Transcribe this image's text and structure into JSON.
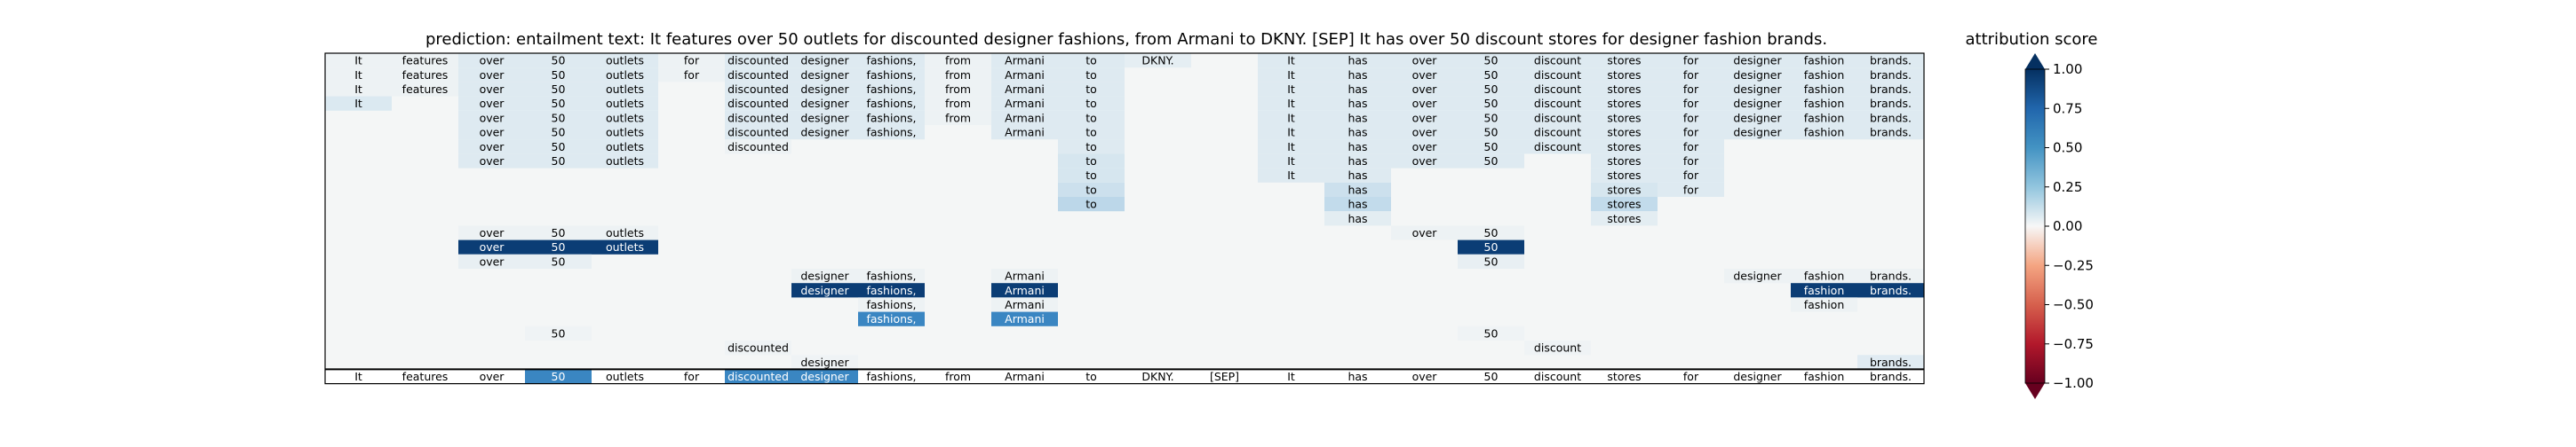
{
  "chart_data": {
    "type": "heatmap",
    "title": "prediction:  entailment     text:  It features over 50 outlets for discounted designer fashions, from Armani to DKNY. [SEP] It has over 50 discount stores for designer fashion brands.",
    "colorbar_label": "attribution score",
    "colorbar_range": [
      -1.0,
      1.0
    ],
    "colorbar_ticks": [
      "1.00",
      "0.75",
      "0.50",
      "0.25",
      "0.00",
      "−0.25",
      "−0.50",
      "−0.75",
      "−1.00"
    ],
    "colormap": "RdBu",
    "colors": {
      "background": "#f4f6f6",
      "strong_positive": "#0b3d75",
      "positive": "#3a86c2",
      "light_positive": "#c3dceb",
      "faint_positive": "#e0ecf2",
      "axes": "#000000"
    },
    "tokens": [
      "It",
      "features",
      "over",
      "50",
      "outlets",
      "for",
      "discounted",
      "designer",
      "fashions,",
      "from",
      "Armani",
      "to",
      "DKNY.",
      "[SEP]",
      "It",
      "has",
      "over",
      "50",
      "discount",
      "stores",
      "for",
      "designer",
      "fashion",
      "brands."
    ],
    "rows": [
      {
        "cells": [
          [
            0,
            0.03
          ],
          [
            1,
            0.03
          ],
          [
            2,
            0.09
          ],
          [
            3,
            0.09
          ],
          [
            4,
            0.09
          ],
          [
            5,
            0.03
          ],
          [
            6,
            0.09
          ],
          [
            7,
            0.09
          ],
          [
            8,
            0.09
          ],
          [
            9,
            0.03
          ],
          [
            10,
            0.09
          ],
          [
            11,
            0.09
          ],
          [
            12,
            0.06,
            "DKNY."
          ],
          [
            14,
            0.09
          ],
          [
            15,
            0.09
          ],
          [
            16,
            0.09
          ],
          [
            17,
            0.09
          ],
          [
            18,
            0.09
          ],
          [
            19,
            0.09
          ],
          [
            20,
            0.09
          ],
          [
            21,
            0.09
          ],
          [
            22,
            0.09
          ],
          [
            23,
            0.09
          ]
        ]
      },
      {
        "cells": [
          [
            0,
            0.03
          ],
          [
            1,
            0.03
          ],
          [
            2,
            0.09
          ],
          [
            3,
            0.09
          ],
          [
            4,
            0.09
          ],
          [
            5,
            0.03
          ],
          [
            6,
            0.09
          ],
          [
            7,
            0.09
          ],
          [
            8,
            0.09
          ],
          [
            9,
            0.03
          ],
          [
            10,
            0.09
          ],
          [
            11,
            0.09
          ],
          [
            14,
            0.09
          ],
          [
            15,
            0.09
          ],
          [
            16,
            0.09
          ],
          [
            17,
            0.09
          ],
          [
            18,
            0.09
          ],
          [
            19,
            0.09
          ],
          [
            20,
            0.09
          ],
          [
            21,
            0.09
          ],
          [
            22,
            0.09
          ],
          [
            23,
            0.09
          ]
        ]
      },
      {
        "cells": [
          [
            0,
            0.03
          ],
          [
            1,
            0.03
          ],
          [
            2,
            0.09
          ],
          [
            3,
            0.09
          ],
          [
            4,
            0.09
          ],
          [
            6,
            0.09
          ],
          [
            7,
            0.09
          ],
          [
            8,
            0.09
          ],
          [
            9,
            0.03
          ],
          [
            10,
            0.09
          ],
          [
            11,
            0.09
          ],
          [
            14,
            0.09
          ],
          [
            15,
            0.09
          ],
          [
            16,
            0.09
          ],
          [
            17,
            0.09
          ],
          [
            18,
            0.09
          ],
          [
            19,
            0.09
          ],
          [
            20,
            0.09
          ],
          [
            21,
            0.09
          ],
          [
            22,
            0.09
          ],
          [
            23,
            0.09
          ]
        ]
      },
      {
        "cells": [
          [
            0,
            0.1
          ],
          [
            2,
            0.09
          ],
          [
            3,
            0.09
          ],
          [
            4,
            0.09
          ],
          [
            6,
            0.09
          ],
          [
            7,
            0.09
          ],
          [
            8,
            0.09
          ],
          [
            9,
            0.03
          ],
          [
            10,
            0.09
          ],
          [
            11,
            0.09
          ],
          [
            14,
            0.09
          ],
          [
            15,
            0.09
          ],
          [
            16,
            0.09
          ],
          [
            17,
            0.09
          ],
          [
            18,
            0.09
          ],
          [
            19,
            0.09
          ],
          [
            20,
            0.09
          ],
          [
            21,
            0.09
          ],
          [
            22,
            0.09
          ],
          [
            23,
            0.09
          ]
        ]
      },
      {
        "cells": [
          [
            2,
            0.09
          ],
          [
            3,
            0.09
          ],
          [
            4,
            0.09
          ],
          [
            6,
            0.09
          ],
          [
            7,
            0.09
          ],
          [
            8,
            0.09
          ],
          [
            9,
            0.03
          ],
          [
            10,
            0.09
          ],
          [
            11,
            0.09
          ],
          [
            14,
            0.09
          ],
          [
            15,
            0.09
          ],
          [
            16,
            0.09
          ],
          [
            17,
            0.09
          ],
          [
            18,
            0.09
          ],
          [
            19,
            0.09
          ],
          [
            20,
            0.09
          ],
          [
            21,
            0.09
          ],
          [
            22,
            0.09
          ],
          [
            23,
            0.09
          ]
        ]
      },
      {
        "cells": [
          [
            2,
            0.09
          ],
          [
            3,
            0.09
          ],
          [
            4,
            0.09
          ],
          [
            6,
            0.09
          ],
          [
            7,
            0.09
          ],
          [
            8,
            0.09
          ],
          [
            10,
            0.09
          ],
          [
            11,
            0.09
          ],
          [
            14,
            0.09
          ],
          [
            15,
            0.09
          ],
          [
            16,
            0.09
          ],
          [
            17,
            0.09
          ],
          [
            18,
            0.09
          ],
          [
            19,
            0.09
          ],
          [
            20,
            0.09
          ],
          [
            21,
            0.09
          ],
          [
            22,
            0.09
          ],
          [
            23,
            0.09
          ]
        ]
      },
      {
        "cells": [
          [
            2,
            0.09
          ],
          [
            3,
            0.09
          ],
          [
            4,
            0.09
          ],
          [
            6,
            0.03
          ],
          [
            11,
            0.09
          ],
          [
            14,
            0.09
          ],
          [
            15,
            0.09
          ],
          [
            16,
            0.09
          ],
          [
            17,
            0.09
          ],
          [
            18,
            0.09
          ],
          [
            19,
            0.09
          ],
          [
            20,
            0.09
          ]
        ]
      },
      {
        "cells": [
          [
            2,
            0.09
          ],
          [
            3,
            0.09
          ],
          [
            4,
            0.09
          ],
          [
            11,
            0.12
          ],
          [
            14,
            0.09
          ],
          [
            15,
            0.09
          ],
          [
            16,
            0.09
          ],
          [
            17,
            0.09
          ],
          [
            19,
            0.09
          ],
          [
            20,
            0.09
          ]
        ]
      },
      {
        "cells": [
          [
            11,
            0.12
          ],
          [
            14,
            0.09
          ],
          [
            15,
            0.09
          ],
          [
            19,
            0.09
          ],
          [
            20,
            0.09
          ]
        ]
      },
      {
        "cells": [
          [
            11,
            0.16
          ],
          [
            15,
            0.16
          ],
          [
            19,
            0.12
          ],
          [
            20,
            0.09
          ]
        ]
      },
      {
        "cells": [
          [
            11,
            0.22
          ],
          [
            15,
            0.2
          ],
          [
            19,
            0.2
          ]
        ]
      },
      {
        "cells": [
          [
            15,
            0.07
          ],
          [
            19,
            0.07
          ]
        ]
      },
      {
        "cells": [
          [
            2,
            0.03
          ],
          [
            3,
            0.03
          ],
          [
            4,
            0.03
          ],
          [
            16,
            0.03
          ],
          [
            17,
            0.03
          ]
        ]
      },
      {
        "cells": [
          [
            2,
            1.0
          ],
          [
            3,
            1.0
          ],
          [
            4,
            1.0
          ],
          [
            17,
            1.0
          ]
        ]
      },
      {
        "cells": [
          [
            2,
            0.05
          ],
          [
            3,
            0.05
          ],
          [
            17,
            0.05
          ]
        ]
      },
      {
        "cells": [
          [
            7,
            0.03
          ],
          [
            8,
            0.03
          ],
          [
            10,
            0.03
          ],
          [
            21,
            0.03
          ],
          [
            22,
            0.03
          ],
          [
            23,
            0.03
          ]
        ]
      },
      {
        "cells": [
          [
            7,
            1.0
          ],
          [
            8,
            1.0
          ],
          [
            10,
            1.0
          ],
          [
            22,
            1.0
          ],
          [
            23,
            1.0
          ]
        ]
      },
      {
        "cells": [
          [
            8,
            0.03
          ],
          [
            10,
            0.03
          ],
          [
            22,
            0.03
          ]
        ]
      },
      {
        "cells": [
          [
            8,
            0.65
          ],
          [
            10,
            0.65
          ]
        ]
      },
      {
        "cells": [
          [
            3,
            0.02
          ],
          [
            17,
            0.02
          ]
        ]
      },
      {
        "cells": [
          [
            6,
            0.02
          ],
          [
            18,
            0.02
          ]
        ]
      },
      {
        "cells": [
          [
            7,
            0.02
          ],
          [
            23,
            0.08
          ]
        ]
      }
    ],
    "bottom_row": [
      [
        3,
        0.65
      ],
      [
        6,
        0.65
      ],
      [
        7,
        0.65
      ]
    ]
  }
}
